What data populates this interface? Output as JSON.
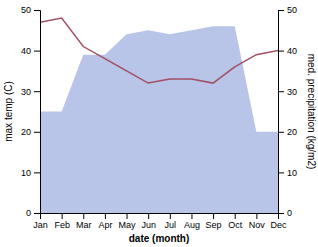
{
  "chart_data": {
    "type": "line",
    "categories": [
      "Jan",
      "Feb",
      "Mar",
      "Apr",
      "May",
      "Jun",
      "Jul",
      "Aug",
      "Sep",
      "Oct",
      "Nov",
      "Dec"
    ],
    "series": [
      {
        "type": "area",
        "color": "#b8c4e8",
        "values": [
          25,
          25,
          39,
          39,
          44,
          45,
          44,
          45,
          46,
          46,
          20,
          20
        ]
      },
      {
        "type": "line",
        "color": "#a05060",
        "axis": "y2",
        "values": [
          47,
          48,
          41,
          38,
          35,
          32,
          33,
          33,
          32,
          36,
          39,
          40
        ]
      }
    ],
    "xlabel": "date (month)",
    "ylabel": "max temp (C)",
    "y2label": "med. precipitation (kg/m2)",
    "ylim": [
      0,
      50
    ],
    "yticks": [
      0,
      10,
      20,
      30,
      40,
      50
    ],
    "y2lim": [
      0,
      50
    ],
    "y2ticks": [
      0,
      10,
      20,
      30,
      40,
      50
    ]
  }
}
